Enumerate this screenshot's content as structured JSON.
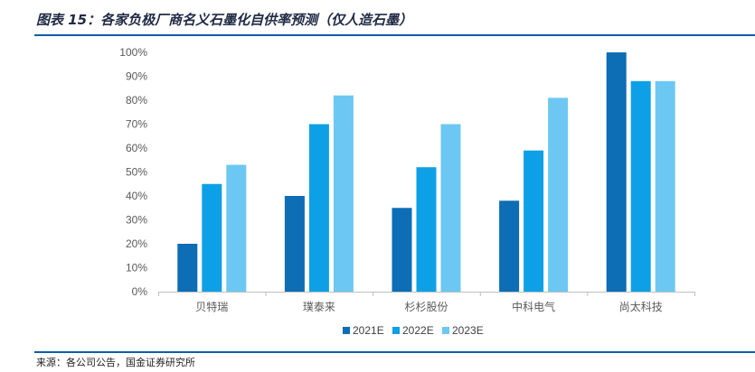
{
  "title": "图表 15：各家负极厂商名义石墨化自供率预测（仅人造石墨）",
  "source": "来源：各公司公告，国金证券研究所",
  "chart_data": {
    "type": "bar",
    "categories": [
      "贝特瑞",
      "璞泰来",
      "杉杉股份",
      "中科电气",
      "尚太科技"
    ],
    "series": [
      {
        "name": "2021E",
        "color": "#0d6db5",
        "values": [
          20,
          40,
          35,
          38,
          100
        ]
      },
      {
        "name": "2022E",
        "color": "#0ea0e6",
        "values": [
          45,
          70,
          52,
          59,
          88
        ]
      },
      {
        "name": "2023E",
        "color": "#6cc8f2",
        "values": [
          53,
          82,
          70,
          81,
          88
        ]
      }
    ],
    "ylim": [
      0,
      100
    ],
    "yticks": [
      "0%",
      "10%",
      "20%",
      "30%",
      "40%",
      "50%",
      "60%",
      "70%",
      "80%",
      "90%",
      "100%"
    ],
    "legend_position": "bottom",
    "grid": false
  }
}
